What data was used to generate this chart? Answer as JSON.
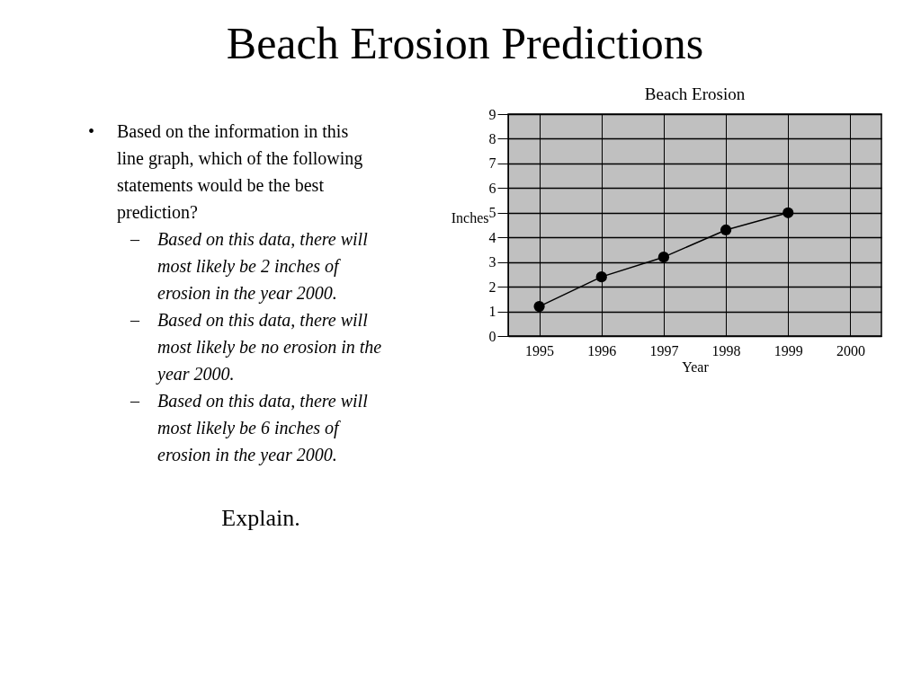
{
  "chart_data": {
    "type": "line",
    "title": "Beach Erosion",
    "xlabel": "Year",
    "ylabel": "Inches",
    "categories": [
      "1995",
      "1996",
      "1997",
      "1998",
      "1999",
      "2000"
    ],
    "series": [
      {
        "color": "#000000",
        "values": [
          1.2,
          2.4,
          3.2,
          4.3,
          5.0,
          null
        ]
      }
    ],
    "ylim": [
      0,
      9
    ],
    "yticks": [
      0,
      1,
      2,
      3,
      4,
      5,
      6,
      7,
      8,
      9
    ],
    "grid": true,
    "marker": "circle",
    "line_style": "solid",
    "legend": false,
    "annotations": [
      "Beach Erosion Predictions",
      "• Based on the information in this line graph, which of the following statements would be the best prediction?",
      "– Based on this data, there will most likely be 2 inches of erosion in the year 2000.",
      "– Based on this data, there will most likely be no erosion in the year 2000.",
      "– Based on this data, there will most likely be 6 inches of erosion in the year 2000.",
      "Explain."
    ]
  }
}
